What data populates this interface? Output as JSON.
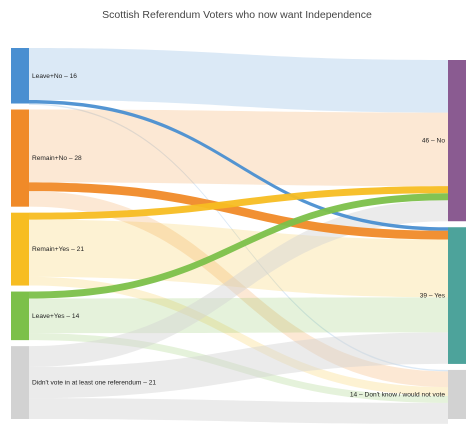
{
  "chart_data": {
    "type": "sankey",
    "title": "Scottish Referendum Voters who now want Independence",
    "sources": [
      {
        "key": "leave_no",
        "label": "Leave+No – 16",
        "value": 16,
        "color": "#4a8fd1"
      },
      {
        "key": "remain_no",
        "label": "Remain+No – 28",
        "value": 28,
        "color": "#f08a28"
      },
      {
        "key": "remain_yes",
        "label": "Remain+Yes – 21",
        "value": 21,
        "color": "#f7bd22"
      },
      {
        "key": "leave_yes",
        "label": "Leave+Yes – 14",
        "value": 14,
        "color": "#7cc04a"
      },
      {
        "key": "didnt_vote",
        "label": "Didn't vote in at least one referendum – 21",
        "value": 21,
        "color": "#d2d2d2"
      }
    ],
    "targets": [
      {
        "key": "no",
        "label": "46 – No",
        "value": 46,
        "color": "#8a5b91"
      },
      {
        "key": "yes",
        "label": "39 – Yes",
        "value": 39,
        "color": "#4da39b"
      },
      {
        "key": "dont_know",
        "label": "14 – Don't know / would not vote",
        "value": 14,
        "color": "#d2d2d2"
      }
    ],
    "links": [
      {
        "source": "leave_no",
        "target": "no",
        "value": 15,
        "highlight": false
      },
      {
        "source": "leave_no",
        "target": "yes",
        "value": 1,
        "highlight": true
      },
      {
        "source": "leave_no",
        "target": "dont_know",
        "value": 0.4,
        "highlight": false
      },
      {
        "source": "remain_no",
        "target": "no",
        "value": 21,
        "highlight": false
      },
      {
        "source": "remain_no",
        "target": "yes",
        "value": 2.5,
        "highlight": true
      },
      {
        "source": "remain_no",
        "target": "dont_know",
        "value": 4.5,
        "highlight": false
      },
      {
        "source": "remain_yes",
        "target": "no",
        "value": 2,
        "highlight": true
      },
      {
        "source": "remain_yes",
        "target": "yes",
        "value": 16.5,
        "highlight": false
      },
      {
        "source": "remain_yes",
        "target": "dont_know",
        "value": 2.5,
        "highlight": false
      },
      {
        "source": "leave_yes",
        "target": "no",
        "value": 2,
        "highlight": true
      },
      {
        "source": "leave_yes",
        "target": "yes",
        "value": 10,
        "highlight": false
      },
      {
        "source": "leave_yes",
        "target": "dont_know",
        "value": 2,
        "highlight": false
      },
      {
        "source": "didnt_vote",
        "target": "no",
        "value": 6,
        "highlight": false
      },
      {
        "source": "didnt_vote",
        "target": "yes",
        "value": 9,
        "highlight": false
      },
      {
        "source": "didnt_vote",
        "target": "dont_know",
        "value": 6,
        "highlight": false
      }
    ]
  }
}
